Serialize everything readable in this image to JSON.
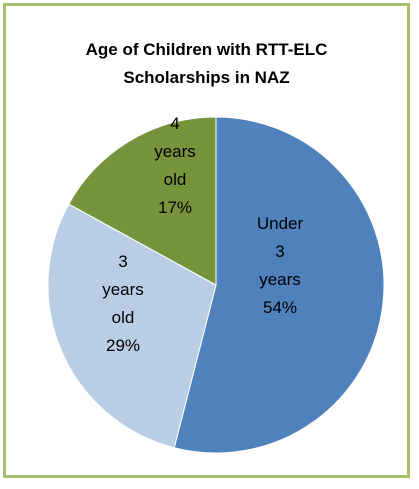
{
  "chart_data": {
    "type": "pie",
    "title_lines": [
      "Age of Children with RTT-ELC",
      "Scholarships in NAZ"
    ],
    "slices": [
      {
        "label_lines": [
          "Under",
          "3",
          "years",
          "54%"
        ],
        "value": 54,
        "color": "#4f81bd",
        "label_color": "#000000"
      },
      {
        "label_lines": [
          "3",
          "years",
          "old",
          "29%"
        ],
        "value": 29,
        "color": "#b9cde5",
        "label_color": "#000000"
      },
      {
        "label_lines": [
          "4",
          "years",
          "old",
          "17%"
        ],
        "value": 17,
        "color": "#77933c",
        "label_color": "#000000"
      }
    ]
  },
  "frame": {
    "border_color": "#a8bf6c"
  }
}
